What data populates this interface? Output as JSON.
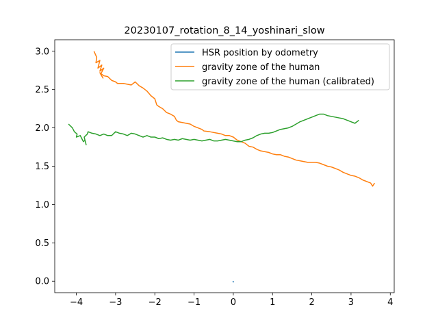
{
  "chart_data": {
    "type": "line",
    "title": "20230107_rotation_8_14_yoshinari_slow",
    "xlabel": "",
    "ylabel": "",
    "xlim": [
      -4.55,
      4.1
    ],
    "ylim": [
      -0.15,
      3.15
    ],
    "xticks": [
      -4,
      -3,
      -2,
      -1,
      0,
      1,
      2,
      3,
      4
    ],
    "yticks": [
      0.0,
      0.5,
      1.0,
      1.5,
      2.0,
      2.5,
      3.0
    ],
    "xtick_labels": [
      "−4",
      "−3",
      "−2",
      "−1",
      "0",
      "1",
      "2",
      "3",
      "4"
    ],
    "ytick_labels": [
      "0.0",
      "0.5",
      "1.0",
      "1.5",
      "2.0",
      "2.5",
      "3.0"
    ],
    "grid": false,
    "legend_position": "upper right",
    "series": [
      {
        "name": "HSR position by odometry",
        "color": "#1f77b4",
        "x": [
          -0.01,
          0.0,
          0.0
        ],
        "y": [
          0.0,
          -0.01,
          0.0
        ]
      },
      {
        "name": "gravity zone of the human",
        "color": "#ff7f0e",
        "x": [
          -3.55,
          -3.48,
          -3.5,
          -3.4,
          -3.45,
          -3.35,
          -3.4,
          -3.3,
          -3.38,
          -3.32,
          -3.4,
          -3.3,
          -3.2,
          -3.1,
          -3.0,
          -2.95,
          -2.8,
          -2.7,
          -2.6,
          -2.5,
          -2.4,
          -2.3,
          -2.2,
          -2.1,
          -2.0,
          -1.95,
          -1.9,
          -1.8,
          -1.7,
          -1.6,
          -1.5,
          -1.45,
          -1.4,
          -1.3,
          -1.2,
          -1.1,
          -1.0,
          -0.9,
          -0.8,
          -0.75,
          -0.6,
          -0.5,
          -0.4,
          -0.3,
          -0.2,
          -0.1,
          0.0,
          0.1,
          0.2,
          0.3,
          0.35,
          0.4,
          0.5,
          0.6,
          0.7,
          0.8,
          0.9,
          1.0,
          1.1,
          1.2,
          1.3,
          1.4,
          1.5,
          1.6,
          1.7,
          1.8,
          1.9,
          2.0,
          2.1,
          2.2,
          2.3,
          2.4,
          2.5,
          2.6,
          2.7,
          2.8,
          2.9,
          3.0,
          3.1,
          3.2,
          3.3,
          3.4,
          3.5,
          3.55,
          3.6
        ],
        "y": [
          3.0,
          2.92,
          2.85,
          2.88,
          2.78,
          2.82,
          2.74,
          2.78,
          2.7,
          2.65,
          2.72,
          2.68,
          2.67,
          2.62,
          2.6,
          2.58,
          2.58,
          2.57,
          2.56,
          2.6,
          2.55,
          2.52,
          2.48,
          2.42,
          2.38,
          2.3,
          2.28,
          2.25,
          2.2,
          2.18,
          2.15,
          2.1,
          2.08,
          2.07,
          2.06,
          2.05,
          2.02,
          2.0,
          1.98,
          1.96,
          1.95,
          1.94,
          1.93,
          1.92,
          1.9,
          1.9,
          1.88,
          1.84,
          1.82,
          1.8,
          1.78,
          1.76,
          1.75,
          1.72,
          1.7,
          1.69,
          1.68,
          1.66,
          1.65,
          1.65,
          1.63,
          1.62,
          1.6,
          1.58,
          1.57,
          1.56,
          1.55,
          1.55,
          1.55,
          1.54,
          1.52,
          1.5,
          1.49,
          1.47,
          1.45,
          1.42,
          1.4,
          1.38,
          1.37,
          1.35,
          1.32,
          1.3,
          1.28,
          1.24,
          1.28
        ]
      },
      {
        "name": "gravity zone of the human (calibrated)",
        "color": "#2ca02c",
        "x": [
          -4.2,
          -4.1,
          -4.05,
          -3.98,
          -4.0,
          -3.9,
          -3.85,
          -3.82,
          -3.78,
          -3.75,
          -3.8,
          -3.72,
          -3.7,
          -3.6,
          -3.5,
          -3.4,
          -3.3,
          -3.2,
          -3.1,
          -3.0,
          -2.9,
          -2.8,
          -2.7,
          -2.6,
          -2.5,
          -2.4,
          -2.3,
          -2.2,
          -2.1,
          -2.0,
          -1.9,
          -1.8,
          -1.7,
          -1.6,
          -1.5,
          -1.4,
          -1.3,
          -1.2,
          -1.1,
          -1.0,
          -0.9,
          -0.8,
          -0.7,
          -0.6,
          -0.5,
          -0.4,
          -0.3,
          -0.2,
          -0.1,
          0.0,
          0.1,
          0.2,
          0.3,
          0.4,
          0.5,
          0.6,
          0.7,
          0.8,
          0.9,
          1.0,
          1.1,
          1.2,
          1.3,
          1.4,
          1.5,
          1.6,
          1.7,
          1.8,
          1.9,
          2.0,
          2.1,
          2.2,
          2.3,
          2.4,
          2.5,
          2.6,
          2.7,
          2.8,
          2.9,
          3.0,
          3.1,
          3.2
        ],
        "y": [
          2.05,
          2.0,
          1.95,
          1.92,
          1.88,
          1.9,
          1.85,
          1.82,
          1.84,
          1.78,
          1.88,
          1.92,
          1.95,
          1.93,
          1.92,
          1.9,
          1.92,
          1.9,
          1.9,
          1.95,
          1.93,
          1.92,
          1.9,
          1.93,
          1.92,
          1.9,
          1.88,
          1.9,
          1.88,
          1.88,
          1.86,
          1.87,
          1.85,
          1.84,
          1.85,
          1.84,
          1.86,
          1.85,
          1.84,
          1.85,
          1.84,
          1.83,
          1.84,
          1.85,
          1.83,
          1.83,
          1.84,
          1.85,
          1.84,
          1.83,
          1.82,
          1.82,
          1.84,
          1.85,
          1.87,
          1.9,
          1.92,
          1.93,
          1.93,
          1.94,
          1.96,
          1.98,
          1.99,
          2.0,
          2.02,
          2.05,
          2.08,
          2.1,
          2.12,
          2.14,
          2.16,
          2.18,
          2.18,
          2.16,
          2.15,
          2.14,
          2.13,
          2.12,
          2.1,
          2.08,
          2.06,
          2.1
        ]
      }
    ]
  }
}
